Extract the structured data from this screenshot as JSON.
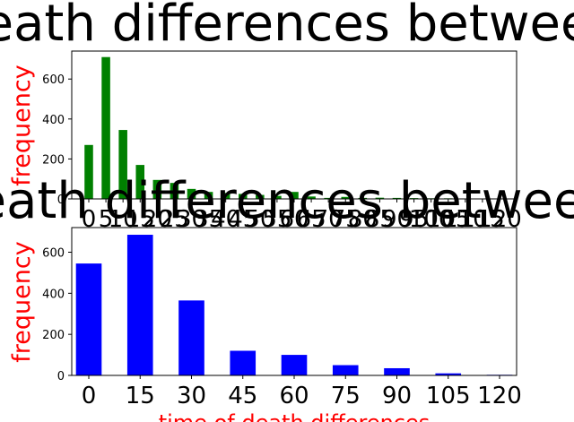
{
  "chart_data": [
    {
      "type": "bar",
      "title": "death differences between",
      "ylabel": "frequency",
      "xlabel": "",
      "color": "#008000",
      "ylim": [
        0,
        740
      ],
      "yticks": [
        0,
        200,
        400,
        600
      ],
      "categories": [
        "0",
        "5",
        "10",
        "15",
        "20",
        "25",
        "30",
        "35",
        "40",
        "45",
        "50",
        "55",
        "60",
        "65",
        "70",
        "75",
        "80",
        "85",
        "90",
        "95",
        "100",
        "105",
        "110",
        "115",
        "120"
      ],
      "values": [
        270,
        710,
        345,
        170,
        95,
        80,
        50,
        35,
        30,
        25,
        20,
        15,
        35,
        12,
        5,
        10,
        5,
        6,
        5,
        4,
        3,
        3,
        2,
        2,
        1
      ]
    },
    {
      "type": "bar",
      "title": "death differences between",
      "ylabel": "frequency",
      "xlabel": "time of death differences",
      "color": "#0000ff",
      "ylim": [
        0,
        720
      ],
      "yticks": [
        0,
        200,
        400,
        600
      ],
      "categories": [
        "0",
        "15",
        "30",
        "45",
        "60",
        "75",
        "90",
        "105",
        "120"
      ],
      "values": [
        545,
        685,
        365,
        120,
        100,
        50,
        35,
        10,
        3
      ]
    }
  ]
}
